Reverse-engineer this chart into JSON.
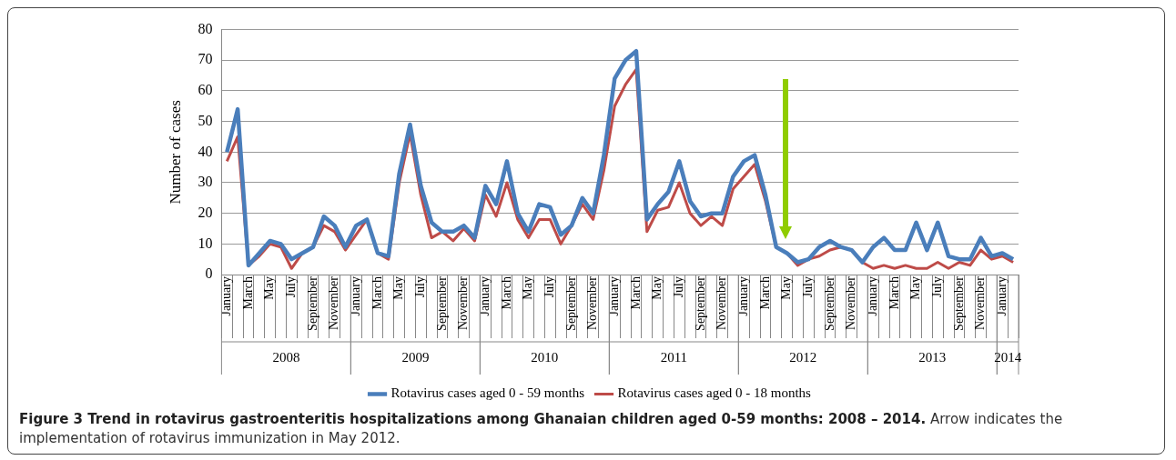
{
  "chart_data": {
    "type": "line",
    "title": "Figure 3 Trend in rotavirus gastroenteritis hospitalizations among Ghanaian children aged 0-59 months: 2008 – 2014.",
    "subtitle": "Arrow indicates the implementation of rotavirus immunization in May 2012.",
    "ylabel": "Number of cases",
    "categories": [
      "January",
      null,
      "March",
      null,
      "May",
      null,
      "July",
      null,
      "September",
      null,
      "November",
      null,
      "January",
      null,
      "March",
      null,
      "May",
      null,
      "July",
      null,
      "September",
      null,
      "November",
      null,
      "January",
      null,
      "March",
      null,
      "May",
      null,
      "July",
      null,
      "September",
      null,
      "November",
      null,
      "January",
      null,
      "March",
      null,
      "May",
      null,
      "July",
      null,
      "September",
      null,
      "November",
      null,
      "January",
      null,
      "March",
      null,
      "May",
      null,
      "July",
      null,
      "September",
      null,
      "November",
      null,
      "January",
      null,
      "March",
      null,
      "May",
      null,
      "July",
      null,
      "September",
      null,
      "November",
      null,
      "January",
      null
    ],
    "series": [
      {
        "name": "Rotavirus cases aged 0 - 59 months",
        "color": "#4a7ebb",
        "values": [
          40,
          54,
          3,
          7,
          11,
          10,
          5,
          7,
          9,
          19,
          16,
          9,
          16,
          18,
          7,
          6,
          33,
          49,
          29,
          17,
          14,
          14,
          16,
          12,
          29,
          23,
          37,
          20,
          14,
          23,
          22,
          13,
          16,
          25,
          20,
          39,
          64,
          70,
          73,
          18,
          23,
          27,
          37,
          24,
          19,
          20,
          20,
          32,
          37,
          39,
          26,
          9,
          7,
          4,
          5,
          9,
          11,
          9,
          8,
          4,
          9,
          12,
          8,
          8,
          17,
          8,
          17,
          6,
          5,
          5,
          12,
          6,
          7,
          5
        ]
      },
      {
        "name": "Rotavirus cases aged 0 - 18 months",
        "color": "#be4b48",
        "values": [
          37,
          45,
          3,
          6,
          10,
          9,
          2,
          7,
          9,
          16,
          14,
          8,
          13,
          18,
          7,
          5,
          30,
          46,
          26,
          12,
          14,
          11,
          15,
          11,
          26,
          19,
          30,
          18,
          12,
          18,
          18,
          10,
          16,
          23,
          18,
          34,
          55,
          62,
          67,
          14,
          21,
          22,
          30,
          20,
          16,
          19,
          16,
          28,
          32,
          36,
          24,
          9,
          7,
          3,
          5,
          6,
          8,
          9,
          8,
          4,
          2,
          3,
          2,
          3,
          2,
          2,
          4,
          2,
          4,
          3,
          8,
          5,
          6,
          4
        ]
      }
    ],
    "ylim": [
      0,
      80
    ],
    "yticks": [
      0,
      10,
      20,
      30,
      40,
      50,
      60,
      70,
      80
    ],
    "grid": "y",
    "legend": "bottom",
    "marker": "none",
    "line_style": "solid",
    "annotations": [
      "2008",
      "2009",
      "2010",
      "2011",
      "2012",
      "2013",
      "2014"
    ]
  }
}
